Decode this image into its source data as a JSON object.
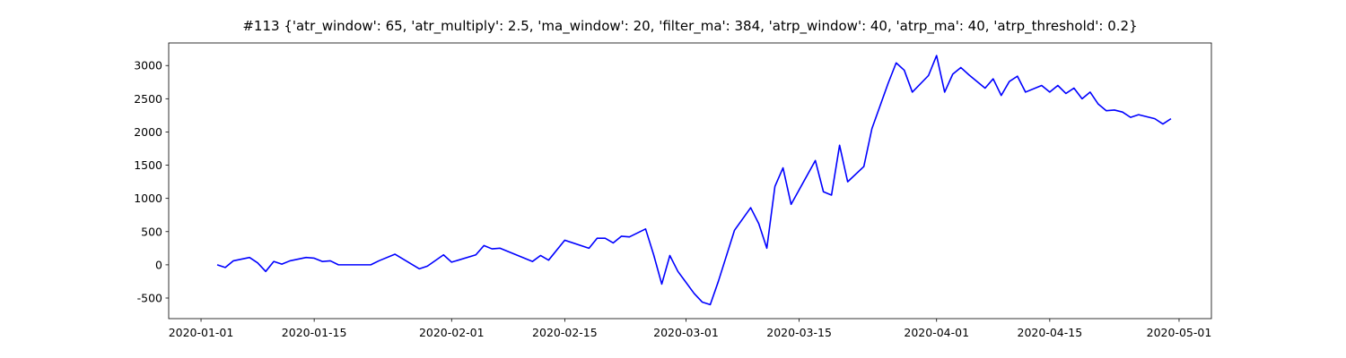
{
  "chart_data": {
    "type": "line",
    "title": "#113 {'atr_window': 65, 'atr_multiply': 2.5, 'ma_window': 20, 'filter_ma': 384, 'atrp_window': 40, 'atrp_ma': 40, 'atrp_threshold': 0.2}",
    "x": [
      "2020-01-03",
      "2020-01-04",
      "2020-01-05",
      "2020-01-07",
      "2020-01-08",
      "2020-01-09",
      "2020-01-10",
      "2020-01-11",
      "2020-01-12",
      "2020-01-14",
      "2020-01-15",
      "2020-01-16",
      "2020-01-17",
      "2020-01-18",
      "2020-01-22",
      "2020-01-23",
      "2020-01-25",
      "2020-01-28",
      "2020-01-29",
      "2020-01-31",
      "2020-02-01",
      "2020-02-04",
      "2020-02-05",
      "2020-02-06",
      "2020-02-07",
      "2020-02-09",
      "2020-02-11",
      "2020-02-12",
      "2020-02-13",
      "2020-02-15",
      "2020-02-18",
      "2020-02-19",
      "2020-02-20",
      "2020-02-21",
      "2020-02-22",
      "2020-02-23",
      "2020-02-25",
      "2020-02-26",
      "2020-02-27",
      "2020-02-28",
      "2020-02-29",
      "2020-03-02",
      "2020-03-03",
      "2020-03-04",
      "2020-03-05",
      "2020-03-07",
      "2020-03-09",
      "2020-03-10",
      "2020-03-11",
      "2020-03-12",
      "2020-03-13",
      "2020-03-14",
      "2020-03-17",
      "2020-03-18",
      "2020-03-19",
      "2020-03-20",
      "2020-03-21",
      "2020-03-23",
      "2020-03-24",
      "2020-03-26",
      "2020-03-27",
      "2020-03-28",
      "2020-03-29",
      "2020-03-31",
      "2020-04-01",
      "2020-04-02",
      "2020-04-03",
      "2020-04-04",
      "2020-04-05",
      "2020-04-07",
      "2020-04-08",
      "2020-04-09",
      "2020-04-10",
      "2020-04-11",
      "2020-04-12",
      "2020-04-14",
      "2020-04-15",
      "2020-04-16",
      "2020-04-17",
      "2020-04-18",
      "2020-04-19",
      "2020-04-20",
      "2020-04-21",
      "2020-04-22",
      "2020-04-23",
      "2020-04-24",
      "2020-04-25",
      "2020-04-26",
      "2020-04-28",
      "2020-04-29",
      "2020-04-30"
    ],
    "values": [
      0,
      -40,
      60,
      110,
      30,
      -100,
      50,
      10,
      60,
      110,
      100,
      50,
      60,
      0,
      0,
      60,
      160,
      -60,
      -20,
      150,
      40,
      150,
      290,
      240,
      250,
      150,
      50,
      140,
      70,
      370,
      250,
      400,
      400,
      330,
      430,
      420,
      540,
      150,
      -290,
      140,
      -100,
      -430,
      -560,
      -600,
      -250,
      520,
      860,
      620,
      250,
      1180,
      1460,
      910,
      1570,
      1100,
      1050,
      1800,
      1250,
      1480,
      2050,
      2730,
      3040,
      2930,
      2600,
      2850,
      3150,
      2600,
      2870,
      2970,
      2860,
      2660,
      2800,
      2550,
      2760,
      2840,
      2600,
      2700,
      2600,
      2700,
      2580,
      2660,
      2500,
      2600,
      2420,
      2320,
      2330,
      2300,
      2220,
      2260,
      2200,
      2120,
      2200
    ],
    "color": "#0000ff",
    "xlim": [
      "2019-12-28",
      "2020-05-05"
    ],
    "xticks": [
      "2020-01-01",
      "2020-01-15",
      "2020-02-01",
      "2020-02-15",
      "2020-03-01",
      "2020-03-15",
      "2020-04-01",
      "2020-04-15",
      "2020-05-01"
    ],
    "ylim": [
      -810,
      3340
    ],
    "yticks": [
      -500,
      0,
      500,
      1000,
      1500,
      2000,
      2500,
      3000
    ]
  }
}
